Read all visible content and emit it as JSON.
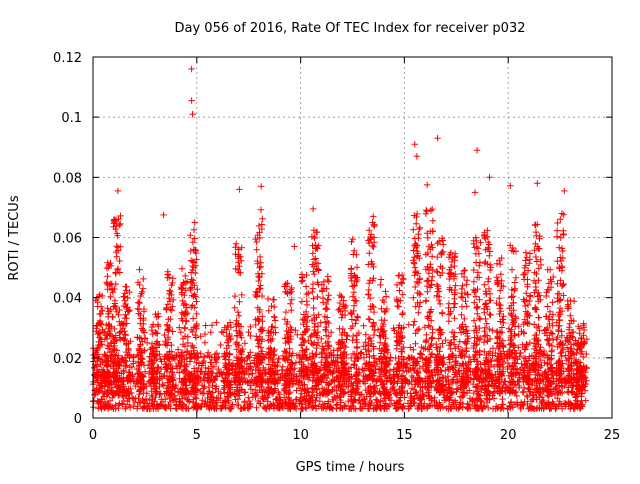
{
  "chart_data": {
    "type": "scatter",
    "title": "Day 056 of 2016, Rate Of TEC Index for receiver p032",
    "xlabel": "GPS time / hours",
    "ylabel": "ROTI / TECUs",
    "xlim": [
      0,
      25
    ],
    "ylim": [
      0,
      0.12
    ],
    "x_ticks": [
      0,
      5,
      10,
      15,
      20,
      25
    ],
    "x_tick_labels": [
      "0",
      "5",
      "10",
      "15",
      "20",
      "25"
    ],
    "y_ticks": [
      0,
      0.02,
      0.04,
      0.06,
      0.08,
      0.1,
      0.12
    ],
    "y_tick_labels": [
      "0",
      "0.02",
      "0.04",
      "0.06",
      "0.08",
      "0.1",
      "0.12"
    ],
    "grid": true,
    "marker": "+",
    "color": "#ff0000",
    "x_data_range": [
      0,
      23.8
    ],
    "notable_points": [
      {
        "x": 4.75,
        "y": 0.116
      },
      {
        "x": 4.75,
        "y": 0.1055
      },
      {
        "x": 4.8,
        "y": 0.101
      },
      {
        "x": 16.6,
        "y": 0.093
      },
      {
        "x": 15.5,
        "y": 0.091
      },
      {
        "x": 18.5,
        "y": 0.089
      },
      {
        "x": 15.6,
        "y": 0.087
      },
      {
        "x": 19.1,
        "y": 0.08
      },
      {
        "x": 21.4,
        "y": 0.078
      },
      {
        "x": 16.1,
        "y": 0.0775
      },
      {
        "x": 20.1,
        "y": 0.0772
      },
      {
        "x": 8.1,
        "y": 0.077
      },
      {
        "x": 7.05,
        "y": 0.076
      },
      {
        "x": 1.2,
        "y": 0.0755
      },
      {
        "x": 22.7,
        "y": 0.0755
      },
      {
        "x": 18.4,
        "y": 0.075
      },
      {
        "x": 3.4,
        "y": 0.0675
      },
      {
        "x": 4.9,
        "y": 0.065
      },
      {
        "x": 10.6,
        "y": 0.0695
      },
      {
        "x": 13.5,
        "y": 0.067
      },
      {
        "x": 9.7,
        "y": 0.057
      }
    ],
    "activity_bursts": [
      {
        "x": 0.3,
        "peak": 0.042
      },
      {
        "x": 0.8,
        "peak": 0.055
      },
      {
        "x": 1.15,
        "peak": 0.068
      },
      {
        "x": 1.6,
        "peak": 0.045
      },
      {
        "x": 2.3,
        "peak": 0.05
      },
      {
        "x": 3.0,
        "peak": 0.036
      },
      {
        "x": 3.7,
        "peak": 0.05
      },
      {
        "x": 4.4,
        "peak": 0.052
      },
      {
        "x": 4.85,
        "peak": 0.063
      },
      {
        "x": 6.5,
        "peak": 0.032
      },
      {
        "x": 7.0,
        "peak": 0.058
      },
      {
        "x": 8.0,
        "peak": 0.07
      },
      {
        "x": 8.6,
        "peak": 0.04
      },
      {
        "x": 9.4,
        "peak": 0.045
      },
      {
        "x": 10.2,
        "peak": 0.048
      },
      {
        "x": 10.7,
        "peak": 0.063
      },
      {
        "x": 11.2,
        "peak": 0.05
      },
      {
        "x": 12.0,
        "peak": 0.042
      },
      {
        "x": 12.6,
        "peak": 0.06
      },
      {
        "x": 13.4,
        "peak": 0.065
      },
      {
        "x": 14.0,
        "peak": 0.05
      },
      {
        "x": 14.8,
        "peak": 0.048
      },
      {
        "x": 15.6,
        "peak": 0.068
      },
      {
        "x": 16.2,
        "peak": 0.07
      },
      {
        "x": 16.7,
        "peak": 0.062
      },
      {
        "x": 17.3,
        "peak": 0.055
      },
      {
        "x": 17.9,
        "peak": 0.05
      },
      {
        "x": 18.5,
        "peak": 0.06
      },
      {
        "x": 19.0,
        "peak": 0.063
      },
      {
        "x": 19.6,
        "peak": 0.055
      },
      {
        "x": 20.2,
        "peak": 0.06
      },
      {
        "x": 20.9,
        "peak": 0.055
      },
      {
        "x": 21.4,
        "peak": 0.065
      },
      {
        "x": 22.0,
        "peak": 0.05
      },
      {
        "x": 22.5,
        "peak": 0.068
      },
      {
        "x": 23.0,
        "peak": 0.04
      },
      {
        "x": 23.5,
        "peak": 0.032
      }
    ],
    "baseline_range": [
      0.003,
      0.02
    ]
  }
}
